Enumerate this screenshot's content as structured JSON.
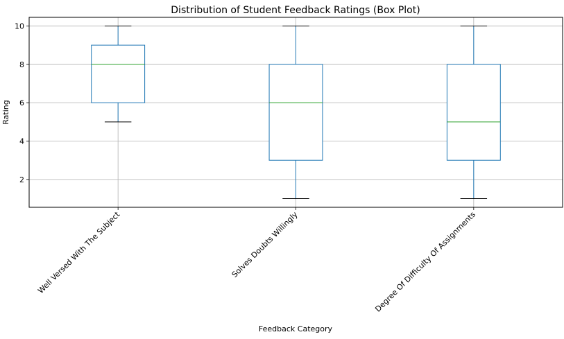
{
  "chart_data": {
    "type": "box",
    "title": "Distribution of Student Feedback Ratings (Box Plot)",
    "xlabel": "Feedback Category",
    "ylabel": "Rating",
    "ylim": [
      0.55,
      10.45
    ],
    "yticks": [
      2,
      4,
      6,
      8,
      10
    ],
    "grid": true,
    "categories": [
      "Well Versed With The Subject",
      "Solves Doubts Willingly",
      "Degree Of Difficulty Of Assignments"
    ],
    "boxes": [
      {
        "whisker_low": 5,
        "q1": 6,
        "median": 8,
        "q3": 9,
        "whisker_high": 10
      },
      {
        "whisker_low": 1,
        "q1": 3,
        "median": 6,
        "q3": 8,
        "whisker_high": 10
      },
      {
        "whisker_low": 1,
        "q1": 3,
        "median": 5,
        "q3": 8,
        "whisker_high": 10
      }
    ],
    "colors": {
      "box": "#1f77b4",
      "median": "#2ca02c",
      "cap": "#000000",
      "grid": "#b0b0b0"
    }
  }
}
